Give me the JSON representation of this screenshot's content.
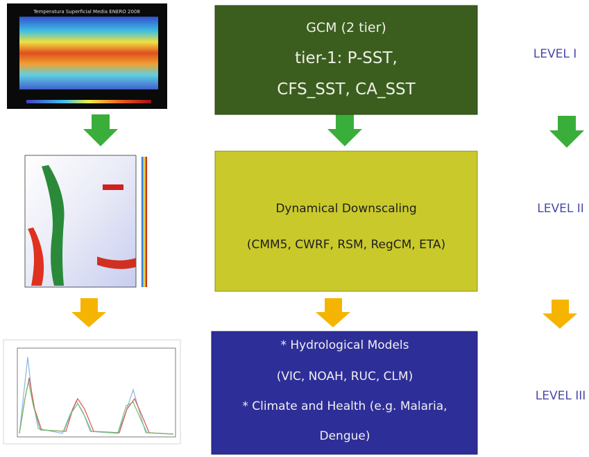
{
  "images": {
    "temperature_map": {
      "title": "Temperatura Superficial Media ENERO 2008"
    }
  },
  "boxes": [
    {
      "lines": [
        "GCM (2 tier)",
        "tier-1: P-SST,",
        "CFS_SST, CA_SST"
      ]
    },
    {
      "lines": [
        "Dynamical Downscaling",
        "(CMM5, CWRF, RSM, RegCM, ETA)"
      ]
    },
    {
      "lines": [
        "* Hydrological Models",
        "(VIC, NOAH, RUC, CLM)",
        "* Climate and Health (e.g. Malaria,",
        "Dengue)"
      ]
    }
  ],
  "levels": [
    "LEVEL I",
    "LEVEL II",
    "LEVEL III"
  ]
}
